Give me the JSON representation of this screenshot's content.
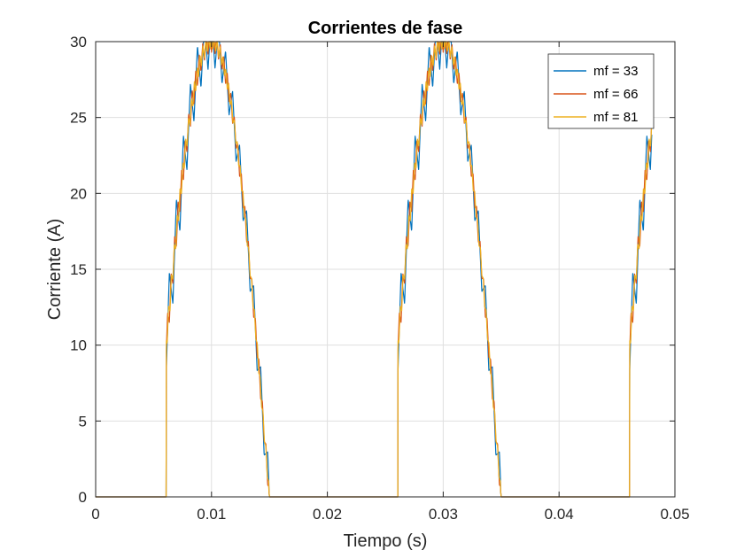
{
  "chart_data": {
    "type": "line",
    "title": "Corrientes de fase",
    "xlabel": "Tiempo (s)",
    "ylabel": "Corriente (A)",
    "xlim": [
      0,
      0.05
    ],
    "ylim": [
      0,
      30
    ],
    "xticks": [
      0,
      0.01,
      0.02,
      0.03,
      0.04,
      0.05
    ],
    "xtick_labels": [
      "0",
      "0.01",
      "0.02",
      "0.03",
      "0.04",
      "0.05"
    ],
    "yticks": [
      0,
      5,
      10,
      15,
      20,
      25,
      30
    ],
    "ytick_labels": [
      "0",
      "5",
      "10",
      "15",
      "20",
      "25",
      "30"
    ],
    "grid": true,
    "legend_position": "top-right",
    "waveform": {
      "frequency_hz": 50,
      "amplitude_a": 30,
      "conduction_start_s": 0.0061,
      "conduction_end_s": 0.02,
      "t_end_s": 0.048
    },
    "series": [
      {
        "name": "mf = 33",
        "color": "#0072BD",
        "mf": 33,
        "ripple_a": 2.4
      },
      {
        "name": "mf = 66",
        "color": "#D95319",
        "mf": 66,
        "ripple_a": 1.0
      },
      {
        "name": "mf = 81",
        "color": "#EDB120",
        "mf": 81,
        "ripple_a": 0.7
      }
    ]
  }
}
